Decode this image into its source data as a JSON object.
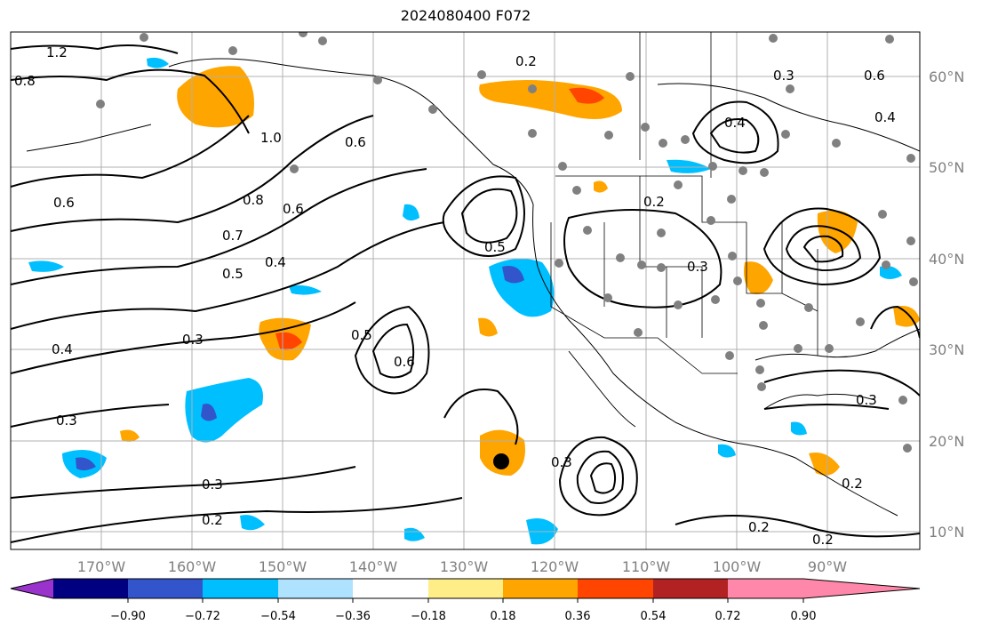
{
  "title": "2024080400 F072",
  "lat_labels": [
    "60°N",
    "50°N",
    "40°N",
    "30°N",
    "20°N",
    "10°N"
  ],
  "lon_labels": [
    "170°W",
    "160°W",
    "150°W",
    "140°W",
    "130°W",
    "120°W",
    "110°W",
    "100°W",
    "90°W"
  ],
  "colorbar": {
    "ticks": [
      "−0.90",
      "−0.72",
      "−0.54",
      "−0.36",
      "−0.18",
      "0.18",
      "0.36",
      "0.54",
      "0.72",
      "0.90"
    ],
    "colors": [
      "#9933cc",
      "#000080",
      "#3355cc",
      "#00bfff",
      "#aee2ff",
      "#ffffff",
      "#ffee88",
      "#ffa500",
      "#ff4500",
      "#b22222",
      "#ff88aa"
    ]
  },
  "contour_labels": [
    "1.2",
    "0.8",
    "1.0",
    "0.6",
    "0.7",
    "0.5",
    "0.4",
    "0.3",
    "0.2",
    "0.3",
    "0.4",
    "0.6",
    "0.5",
    "0.6",
    "0.3",
    "0.8",
    "0.6",
    "0.2",
    "0.3",
    "0.5",
    "0.4",
    "0.2",
    "0.3",
    "0.3",
    "0.2",
    "0.2",
    "0.2",
    "0.4",
    "0.6",
    "0.3"
  ],
  "colors": {
    "positive_fill": "#ffa500",
    "positive_strong": "#ff4500",
    "negative_fill": "#00bfff",
    "negative_strong": "#3355cc",
    "station": "#808080",
    "contour": "#000000"
  }
}
